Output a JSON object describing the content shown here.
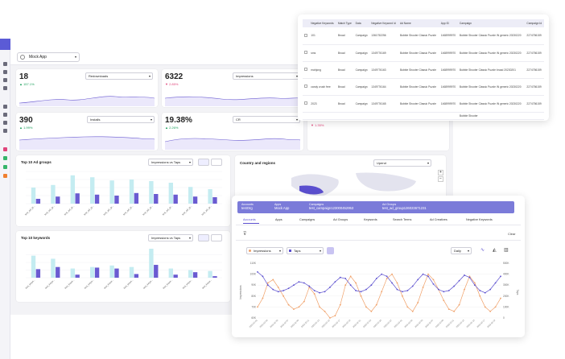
{
  "app_select": {
    "label": "Mock App"
  },
  "metrics": [
    {
      "value": "18",
      "delta": "▲ 157.1%",
      "dropdown": "Redownloads",
      "delta_color": "#1a9e5a"
    },
    {
      "value": "6322",
      "delta": "▼ 2.85%",
      "dropdown": "Impressions",
      "delta_color": "#e0457b"
    },
    {
      "value": "390",
      "delta": "▲ 1.99%",
      "dropdown": "Installs",
      "delta_color": "#1a9e5a"
    },
    {
      "value": "19.38%",
      "delta": "▲ 2.26%",
      "dropdown": "CR",
      "delta_color": "#1a9e5a"
    },
    {
      "value": "",
      "delta": "▼ 1.35%",
      "dropdown": "",
      "delta_color": "#e0457b"
    }
  ],
  "ad_groups_card": {
    "title": "Top 10 Ad groups",
    "dropdown": "Impressions vs Taps"
  },
  "keywords_card": {
    "title": "Top 10 keywords",
    "dropdown": "Impressions vs Taps"
  },
  "country_card": {
    "title": "Country and regions",
    "dropdown": "Upend"
  },
  "keyword_table": {
    "headers": [
      "",
      "Negative Keywords",
      "Match Type",
      "Data",
      "Negative Keyword Id",
      "Ad Name",
      "App ID",
      "Campaign",
      "Campaign Id"
    ],
    "rows": [
      [
        "",
        "101",
        "Broad",
        "Campaign",
        "1361752256",
        "Bubble Shooter Classic Puzzle",
        "1468999970",
        "Bubble Shooter Classic Puzzle IN generic 20230220",
        "2274756159"
      ],
      [
        "",
        "sms",
        "Broad",
        "Campaign",
        "1349776169",
        "Bubble Shooter Classic Puzzle",
        "1468999970",
        "Bubble Shooter Classic Puzzle IN generic 20230220",
        "2274756159"
      ],
      [
        "",
        "mahjong",
        "Broad",
        "Campaign",
        "1349776163",
        "Bubble Shooter Classic Puzzle",
        "1468999970",
        "Bubble Shooter Classic Puzzle broad 20230201",
        "2274756159"
      ],
      [
        "",
        "candy crush free",
        "Broad",
        "Campaign",
        "1349776164",
        "Bubble Shooter Classic Puzzle",
        "1468999970",
        "Bubble Shooter Classic Puzzle IN generic 20230220",
        "2274756159"
      ],
      [
        "",
        "2023",
        "Broad",
        "Campaign",
        "1349776165",
        "Bubble Shooter Classic Puzzle",
        "1468999970",
        "Bubble Shooter Classic Puzzle IN generic 20230220",
        "2274756159"
      ],
      [
        "",
        "",
        "",
        "",
        "",
        "",
        "",
        "Bubble Shooter",
        ""
      ]
    ]
  },
  "breadcrumbs": [
    {
      "label": "Accounts",
      "value": "testOrg"
    },
    {
      "label": "Apps",
      "value": "Mock App"
    },
    {
      "label": "Campaigns",
      "value": "test_campaign123000452953"
    },
    {
      "label": "Ad Groups",
      "value": "test_ad_group126023671231"
    }
  ],
  "tabs": [
    "Accounts",
    "Apps",
    "Campaigns",
    "Ad Groups",
    "Keywords",
    "Search Terms",
    "Ad Creatives",
    "Negative Keywords"
  ],
  "toolbar": {
    "clear_label": "Clear"
  },
  "series_controls": {
    "metric1": "Impressions",
    "metric2": "Taps",
    "granularity": "Daily"
  },
  "chart_data": [
    {
      "type": "bar",
      "title": "Top 10 Ad groups",
      "categories": [
        "test_ad_gr...",
        "test_ad_gr...",
        "test_ad_gr...",
        "test_ad_gr...",
        "test_ad_gr...",
        "test_ad_gr...",
        "test_ad_gr...",
        "test_ad_gr...",
        "test_ad_gr...",
        "test_ad_gr..."
      ],
      "series": [
        {
          "values": [
            50,
            58,
            88,
            82,
            72,
            75,
            70,
            65,
            52,
            45
          ]
        },
        {
          "values": [
            15,
            22,
            32,
            28,
            25,
            33,
            30,
            28,
            22,
            20
          ]
        }
      ],
      "colors": [
        "#c4ecf1",
        "#6a5bd1"
      ],
      "ylim": [
        0,
        100
      ]
    },
    {
      "type": "bar",
      "title": "Top 10 keywords",
      "categories": [
        "test_keyw...",
        "test_keyw...",
        "test_keyw...",
        "test_keyw...",
        "test_keyw...",
        "test_keyw...",
        "test_keyw...",
        "test_keyw...",
        "test_keyw...",
        "test_keyw..."
      ],
      "series": [
        {
          "values": [
            72,
            62,
            30,
            35,
            40,
            35,
            95,
            30,
            25,
            22
          ]
        },
        {
          "values": [
            28,
            35,
            10,
            33,
            30,
            12,
            42,
            10,
            18,
            5
          ]
        }
      ],
      "colors": [
        "#c4ecf1",
        "#6a5bd1"
      ],
      "ylim": [
        0,
        100
      ]
    },
    {
      "type": "line",
      "title": "",
      "y_left_ticks": [
        "110K",
        "100K",
        "90K",
        "80K",
        "70K",
        "60K"
      ],
      "y_right_ticks": [
        "500K",
        "400K",
        "300K",
        "200K",
        "100K",
        "0"
      ],
      "ylabel_left": "Impressions",
      "ylabel_right": "Taps",
      "x": [
        "2023-02-01",
        "2023-02-02",
        "2023-02-03",
        "2023-02-04",
        "2023-02-05",
        "2023-02-06",
        "2023-02-07",
        "2023-02-08",
        "2023-02-09",
        "2023-02-10",
        "2023-02-11",
        "2023-02-12",
        "2023-02-13",
        "2023-02-14",
        "2023-02-15",
        "2023-02-16",
        "2023-02-17",
        "2023-02-18",
        "2023-02-19",
        "2023-02-20",
        "2023-02-21",
        "2023-02-22",
        "2023-02-23",
        "2023-02-24",
        "2023-02-25",
        "2023-02-26",
        "2023-02-27",
        "2023-02-28",
        "2023-03-01",
        "2023-03-02",
        "2023-03-03",
        "2023-03-04",
        "2023-03-05",
        "2023-03-06",
        "2023-03-07",
        "2023-03-08",
        "2023-03-09",
        "2023-03-10",
        "2023-03-11",
        "2023-03-12",
        "2023-03-13",
        "2023-03-14",
        "2023-03-15",
        "2023-03-16",
        "2023-03-17",
        "2023-03-18",
        "2023-03-19",
        "2023-03-20"
      ],
      "series": [
        {
          "name": "Impressions",
          "color": "#f0a068",
          "values": [
            70,
            78,
            92,
            95,
            88,
            80,
            72,
            68,
            70,
            75,
            88,
            82,
            70,
            66,
            60,
            62,
            72,
            90,
            98,
            92,
            80,
            70,
            66,
            72,
            84,
            96,
            100,
            92,
            80,
            70,
            66,
            74,
            88,
            100,
            95,
            86,
            76,
            68,
            66,
            72,
            86,
            98,
            92,
            80,
            70,
            66,
            70,
            78
          ]
        },
        {
          "name": "Taps",
          "color": "#5b4fcf",
          "values": [
            420,
            380,
            300,
            260,
            240,
            250,
            270,
            300,
            330,
            320,
            290,
            250,
            230,
            240,
            280,
            330,
            370,
            360,
            300,
            250,
            240,
            260,
            300,
            360,
            400,
            380,
            320,
            260,
            240,
            250,
            290,
            350,
            400,
            380,
            310,
            260,
            240,
            250,
            290,
            340,
            390,
            370,
            300,
            250,
            230,
            260,
            320,
            380
          ]
        }
      ]
    }
  ]
}
